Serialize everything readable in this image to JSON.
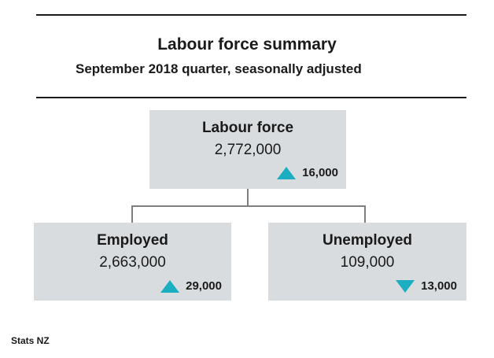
{
  "title": "Labour force summary",
  "subtitle": "September 2018 quarter, seasonally adjusted",
  "nodes": {
    "labour_force": {
      "label": "Labour force",
      "value": "2,772,000",
      "change": "16,000",
      "direction": "up"
    },
    "employed": {
      "label": "Employed",
      "value": "2,663,000",
      "change": "29,000",
      "direction": "up"
    },
    "unemployed": {
      "label": "Unemployed",
      "value": "109,000",
      "change": "13,000",
      "direction": "down"
    }
  },
  "source": "Stats NZ",
  "colors": {
    "box": "#d9dcde",
    "arrow": "#1aaec0",
    "connector": "#7f7f7f",
    "rule": "#1a1a1a"
  }
}
